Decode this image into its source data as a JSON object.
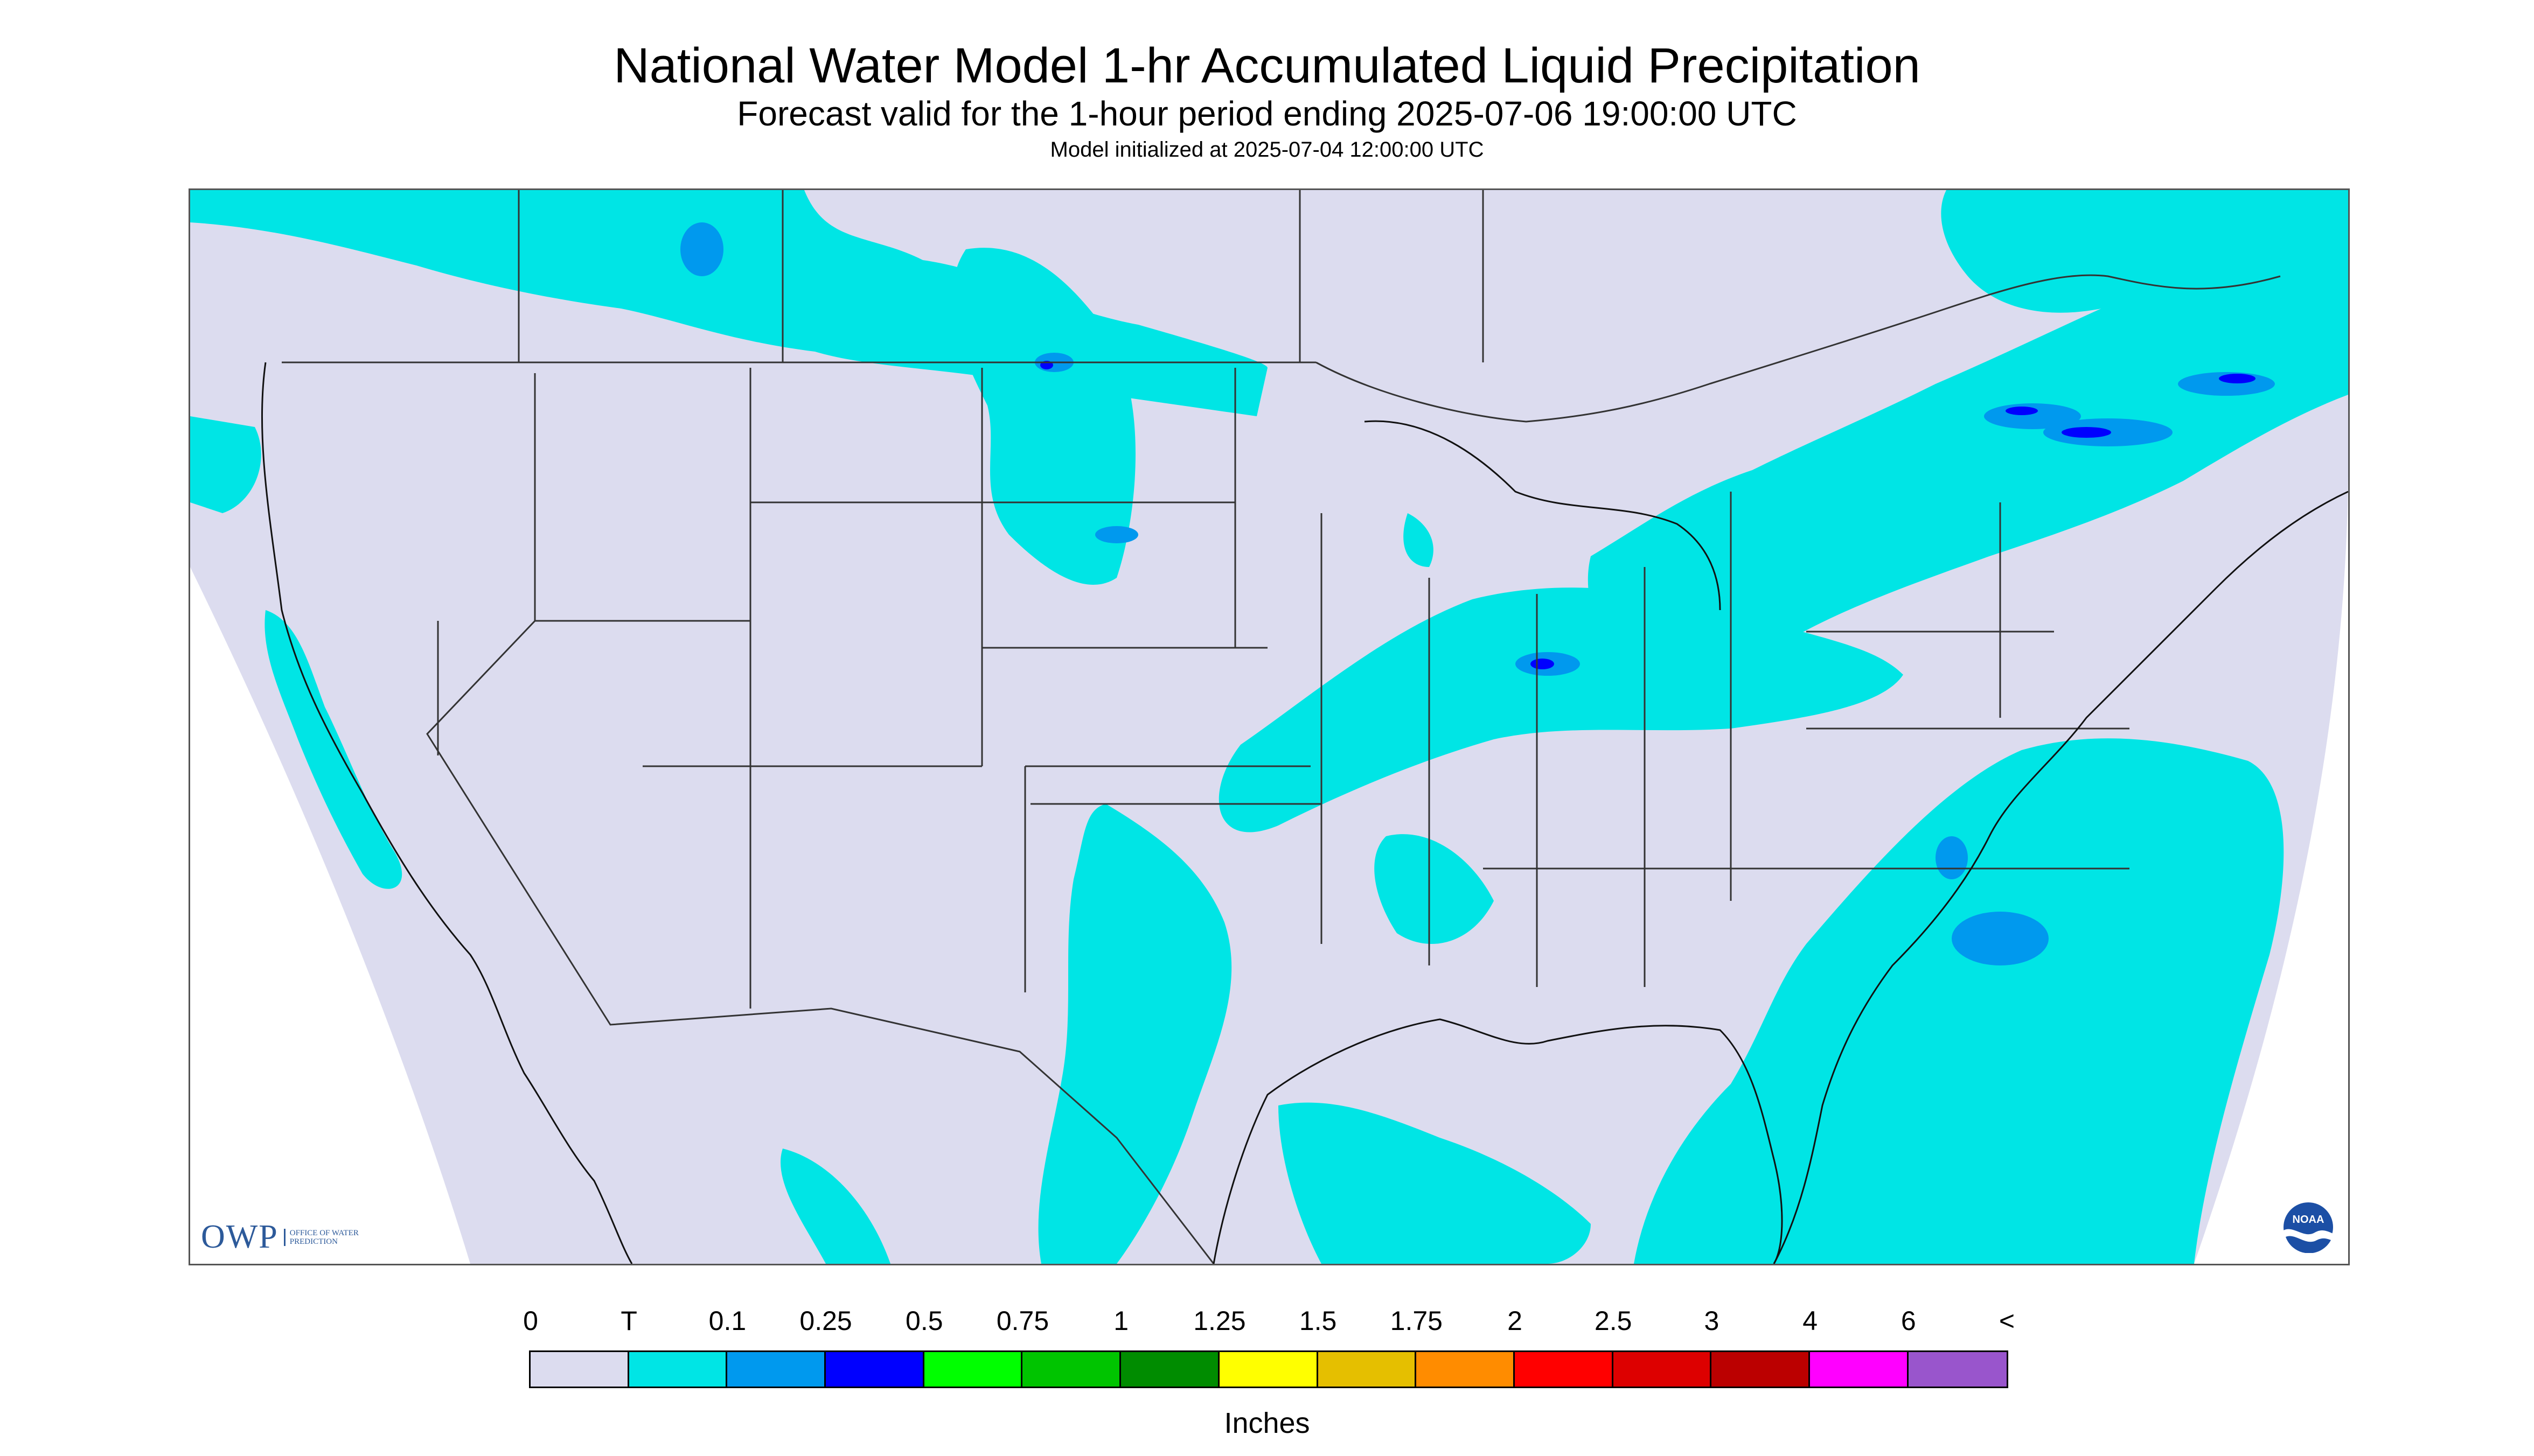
{
  "title": "National Water Model 1-hr Accumulated Liquid Precipitation",
  "subtitle": "Forecast valid for the 1-hour period ending 2025-07-06 19:00:00 UTC",
  "init_text": "Model initialized at 2025-07-04 12:00:00 UTC",
  "logos": {
    "owp_text": "OWP",
    "owp_subtext": "OFFICE OF WATER PREDICTION",
    "noaa_text": "NOAA"
  },
  "legend": {
    "labels": [
      "0",
      "T",
      "0.1",
      "0.25",
      "0.5",
      "0.75",
      "1",
      "1.25",
      "1.5",
      "1.75",
      "2",
      "2.5",
      "3",
      "4",
      "6",
      "<"
    ],
    "colors": [
      "#dcdcef",
      "#00e5e5",
      "#0099ee",
      "#0000ff",
      "#00ff00",
      "#00c400",
      "#008c00",
      "#ffff00",
      "#e5bf00",
      "#ff8c00",
      "#ff0000",
      "#dd0000",
      "#bb0000",
      "#ff00ff",
      "#9955cc"
    ],
    "units": "Inches"
  },
  "colors": {
    "no_precip": "#dcdcef",
    "trace": "#00e5e5",
    "light": "#0099ee",
    "moderate": "#0000ff",
    "border": "#333333"
  }
}
